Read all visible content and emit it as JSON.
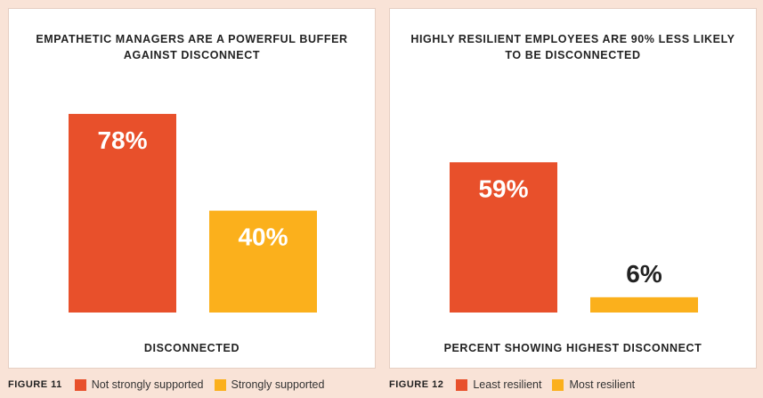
{
  "chart_data": [
    {
      "type": "bar",
      "figure_label": "FIGURE 11",
      "title": "EMPATHETIC MANAGERS ARE A POWERFUL BUFFER AGAINST DISCONNECT",
      "xlabel": "DISCONNECTED",
      "ylim": [
        0,
        100
      ],
      "categories": [
        "Not strongly supported",
        "Strongly supported"
      ],
      "values": [
        78,
        40
      ],
      "value_labels": [
        "78%",
        "40%"
      ],
      "colors": [
        "#e8502b",
        "#fbb01c"
      ],
      "label_colors": [
        "#ffffff",
        "#ffffff"
      ],
      "legend": "bottom"
    },
    {
      "type": "bar",
      "figure_label": "FIGURE 12",
      "title": "HIGHLY RESILIENT EMPLOYEES ARE 90% LESS LIKELY TO BE DISCONNECTED",
      "xlabel": "PERCENT SHOWING HIGHEST DISCONNECT",
      "ylim": [
        0,
        100
      ],
      "categories": [
        "Least resilient",
        "Most resilient"
      ],
      "values": [
        59,
        6
      ],
      "value_labels": [
        "59%",
        "6%"
      ],
      "colors": [
        "#e8502b",
        "#fbb01c"
      ],
      "label_colors": [
        "#ffffff",
        "#222222"
      ],
      "legend": "bottom"
    }
  ]
}
